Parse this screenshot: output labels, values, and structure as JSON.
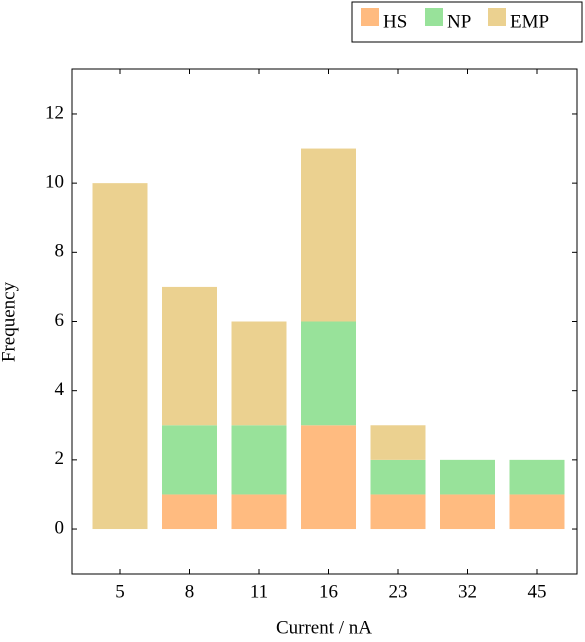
{
  "chart_data": {
    "type": "stacked-bar",
    "x_label": "Current / nA",
    "y_label": "Frequency",
    "categories": [
      "5",
      "8",
      "11",
      "16",
      "23",
      "32",
      "45"
    ],
    "series": [
      {
        "name": "HS",
        "color": "#ffbb80",
        "values": [
          0,
          1,
          1,
          3,
          1,
          1,
          1
        ]
      },
      {
        "name": "NP",
        "color": "#98e29a",
        "values": [
          0,
          2,
          2,
          3,
          1,
          1,
          1
        ]
      },
      {
        "name": "EMP",
        "color": "#ebd190",
        "values": [
          10,
          4,
          3,
          5,
          1,
          0,
          0
        ]
      }
    ],
    "ylim": [
      -1.3,
      13.3
    ],
    "yticks": [
      0,
      2,
      4,
      6,
      8,
      10,
      12
    ],
    "legend": "top-right"
  }
}
